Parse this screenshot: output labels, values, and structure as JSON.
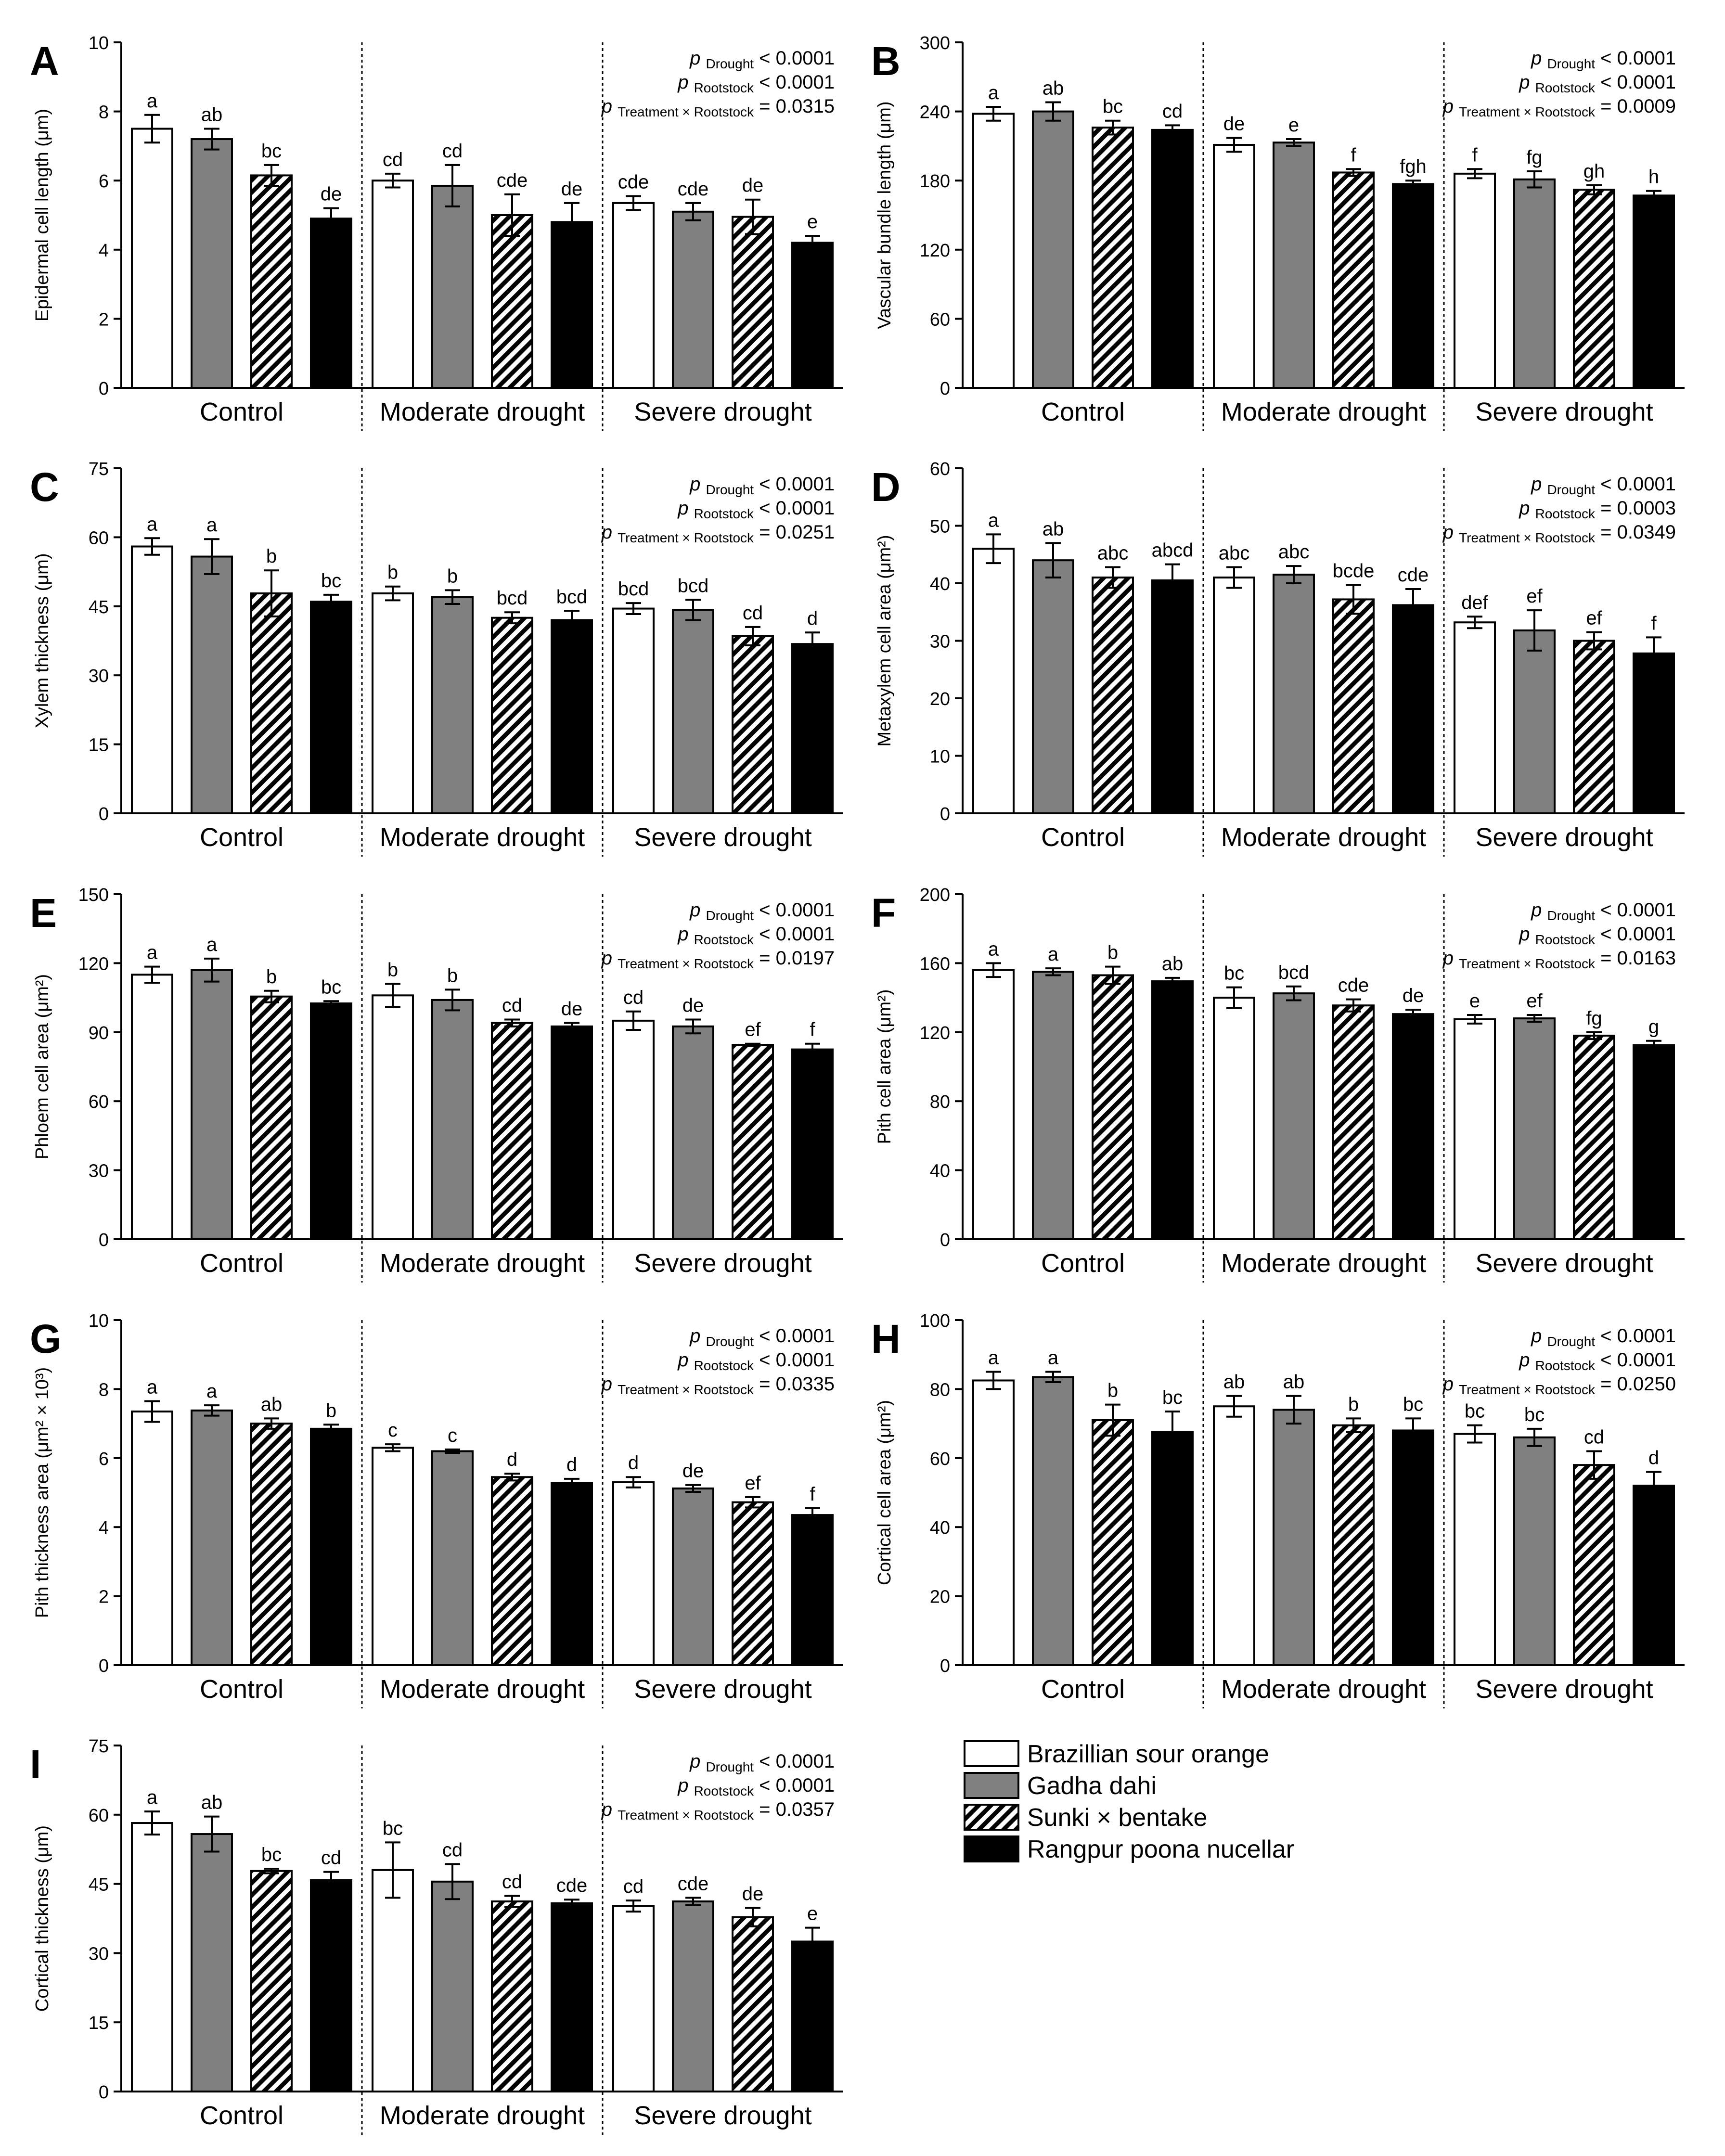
{
  "legend": [
    {
      "name": "Brazillian sour orange",
      "fill": "white"
    },
    {
      "name": "Gadha dahi",
      "fill": "gray"
    },
    {
      "name": "Sunki × bentake",
      "fill": "hatch"
    },
    {
      "name": "Rangpur poona nucellar",
      "fill": "black"
    }
  ],
  "colors": {
    "gray": "#808080",
    "black": "#000000",
    "white": "#ffffff",
    "stroke": "#000000"
  },
  "chart_data": [
    {
      "type": "bar",
      "panel": "A",
      "ylabel": "Epidermal cell length (μm)",
      "ylim": [
        0,
        10
      ],
      "yticks": [
        0,
        2,
        4,
        6,
        8,
        10
      ],
      "groups": [
        "Control",
        "Moderate drought",
        "Severe drought"
      ],
      "series": [
        {
          "name": "Brazillian sour orange",
          "values": [
            7.5,
            6.0,
            5.35
          ],
          "errors": [
            0.4,
            0.2,
            0.2
          ],
          "labels": [
            "a",
            "cd",
            "cde"
          ]
        },
        {
          "name": "Gadha dahi",
          "values": [
            7.2,
            5.85,
            5.1
          ],
          "errors": [
            0.3,
            0.6,
            0.25
          ],
          "labels": [
            "ab",
            "cd",
            "cde"
          ]
        },
        {
          "name": "Sunki × bentake",
          "values": [
            6.15,
            5.0,
            4.95
          ],
          "errors": [
            0.3,
            0.6,
            0.5
          ],
          "labels": [
            "bc",
            "cde",
            "de"
          ]
        },
        {
          "name": "Rangpur poona nucellar",
          "values": [
            4.9,
            4.8,
            4.2
          ],
          "errors": [
            0.3,
            0.55,
            0.2
          ],
          "labels": [
            "de",
            "de",
            "e"
          ]
        }
      ],
      "stats": [
        {
          "p": "p",
          "sub": "Drought",
          "val": "< 0.0001"
        },
        {
          "p": "p",
          "sub": "Rootstock",
          "val": "< 0.0001"
        },
        {
          "p": "p",
          "sub": "Treatment × Rootstock",
          "val": "= 0.0315"
        }
      ]
    },
    {
      "type": "bar",
      "panel": "B",
      "ylabel": "Vascular bundle length (μm)",
      "ylim": [
        0,
        300
      ],
      "yticks": [
        0,
        60,
        120,
        180,
        240,
        300
      ],
      "groups": [
        "Control",
        "Moderate drought",
        "Severe drought"
      ],
      "series": [
        {
          "name": "Brazillian sour orange",
          "values": [
            238,
            211,
            186
          ],
          "errors": [
            6,
            6,
            4
          ],
          "labels": [
            "a",
            "de",
            "f"
          ]
        },
        {
          "name": "Gadha dahi",
          "values": [
            240,
            213,
            181
          ],
          "errors": [
            8,
            3,
            7
          ],
          "labels": [
            "ab",
            "e",
            "fg"
          ]
        },
        {
          "name": "Sunki × bentake",
          "values": [
            226,
            187,
            172
          ],
          "errors": [
            6,
            3,
            4
          ],
          "labels": [
            "bc",
            "f",
            "gh"
          ]
        },
        {
          "name": "Rangpur poona nucellar",
          "values": [
            224,
            177,
            167
          ],
          "errors": [
            4,
            3,
            4
          ],
          "labels": [
            "cd",
            "fgh",
            "h"
          ]
        }
      ],
      "stats": [
        {
          "p": "p",
          "sub": "Drought",
          "val": "< 0.0001"
        },
        {
          "p": "p",
          "sub": "Rootstock",
          "val": "< 0.0001"
        },
        {
          "p": "p",
          "sub": "Treatment × Rootstock",
          "val": "= 0.0009"
        }
      ]
    },
    {
      "type": "bar",
      "panel": "C",
      "ylabel": "Xylem thickness (μm)",
      "ylim": [
        0,
        75
      ],
      "yticks": [
        0,
        15,
        30,
        45,
        60,
        75
      ],
      "groups": [
        "Control",
        "Moderate drought",
        "Severe drought"
      ],
      "series": [
        {
          "name": "Brazillian sour orange",
          "values": [
            58,
            47.8,
            44.5
          ],
          "errors": [
            1.8,
            1.5,
            1.2
          ],
          "labels": [
            "a",
            "b",
            "bcd"
          ]
        },
        {
          "name": "Gadha dahi",
          "values": [
            55.8,
            47,
            44.2
          ],
          "errors": [
            3.8,
            1.5,
            2.2
          ],
          "labels": [
            "a",
            "b",
            "bcd"
          ]
        },
        {
          "name": "Sunki × bentake",
          "values": [
            47.8,
            42.5,
            38.5
          ],
          "errors": [
            5,
            1.2,
            2
          ],
          "labels": [
            "b",
            "bcd",
            "cd"
          ]
        },
        {
          "name": "Rangpur poona nucellar",
          "values": [
            46,
            42,
            36.8
          ],
          "errors": [
            1.5,
            2,
            2.5
          ],
          "labels": [
            "bc",
            "bcd",
            "d"
          ]
        }
      ],
      "stats": [
        {
          "p": "p",
          "sub": "Drought",
          "val": "< 0.0001"
        },
        {
          "p": "p",
          "sub": "Rootstock",
          "val": "< 0.0001"
        },
        {
          "p": "p",
          "sub": "Treatment × Rootstock",
          "val": "= 0.0251"
        }
      ]
    },
    {
      "type": "bar",
      "panel": "D",
      "ylabel": "Metaxylem cell area (μm²)",
      "ylim": [
        0,
        60
      ],
      "yticks": [
        0,
        10,
        20,
        30,
        40,
        50,
        60
      ],
      "groups": [
        "Control",
        "Moderate drought",
        "Severe drought"
      ],
      "series": [
        {
          "name": "Brazillian sour orange",
          "values": [
            46,
            41,
            33.2
          ],
          "errors": [
            2.5,
            1.8,
            1
          ],
          "labels": [
            "a",
            "abc",
            "def"
          ]
        },
        {
          "name": "Gadha dahi",
          "values": [
            44,
            41.5,
            31.8
          ],
          "errors": [
            3,
            1.5,
            3.5
          ],
          "labels": [
            "ab",
            "abc",
            "ef"
          ]
        },
        {
          "name": "Sunki × bentake",
          "values": [
            41,
            37.2,
            30
          ],
          "errors": [
            1.8,
            2.5,
            1.5
          ],
          "labels": [
            "abc",
            "bcde",
            "ef"
          ]
        },
        {
          "name": "Rangpur poona nucellar",
          "values": [
            40.5,
            36.2,
            27.8
          ],
          "errors": [
            2.8,
            2.8,
            2.8
          ],
          "labels": [
            "abcd",
            "cde",
            "f"
          ]
        }
      ],
      "stats": [
        {
          "p": "p",
          "sub": "Drought",
          "val": "< 0.0001"
        },
        {
          "p": "p",
          "sub": "Rootstock",
          "val": "= 0.0003"
        },
        {
          "p": "p",
          "sub": "Treatment × Rootstock",
          "val": "= 0.0349"
        }
      ]
    },
    {
      "type": "bar",
      "panel": "E",
      "ylabel": "Phloem cell area (μm²)",
      "ylim": [
        0,
        150
      ],
      "yticks": [
        0,
        30,
        60,
        90,
        120,
        150
      ],
      "groups": [
        "Control",
        "Moderate drought",
        "Severe drought"
      ],
      "series": [
        {
          "name": "Brazillian sour orange",
          "values": [
            115,
            106,
            95
          ],
          "errors": [
            3.5,
            5,
            4
          ],
          "labels": [
            "a",
            "b",
            "cd"
          ]
        },
        {
          "name": "Gadha dahi",
          "values": [
            117,
            104,
            92.5
          ],
          "errors": [
            5,
            4.5,
            3
          ],
          "labels": [
            "a",
            "b",
            "de"
          ]
        },
        {
          "name": "Sunki × bentake",
          "values": [
            105.5,
            94,
            84.5
          ],
          "errors": [
            2.5,
            1.5,
            0.5
          ],
          "labels": [
            "b",
            "cd",
            "ef"
          ]
        },
        {
          "name": "Rangpur poona nucellar",
          "values": [
            102.5,
            92.5,
            82.5
          ],
          "errors": [
            1,
            1.5,
            2.5
          ],
          "labels": [
            "bc",
            "de",
            "f"
          ]
        }
      ],
      "stats": [
        {
          "p": "p",
          "sub": "Drought",
          "val": "< 0.0001"
        },
        {
          "p": "p",
          "sub": "Rootstock",
          "val": "< 0.0001"
        },
        {
          "p": "p",
          "sub": "Treatment × Rootstock",
          "val": "= 0.0197"
        }
      ]
    },
    {
      "type": "bar",
      "panel": "F",
      "ylabel": "Pith cell area (μm²)",
      "ylim": [
        0,
        200
      ],
      "yticks": [
        0,
        40,
        80,
        120,
        160,
        200
      ],
      "groups": [
        "Control",
        "Moderate drought",
        "Severe drought"
      ],
      "series": [
        {
          "name": "Brazillian sour orange",
          "values": [
            156,
            140,
            127.5
          ],
          "errors": [
            4,
            6,
            2.5
          ],
          "labels": [
            "a",
            "bc",
            "e"
          ]
        },
        {
          "name": "Gadha dahi",
          "values": [
            155,
            142.5,
            128
          ],
          "errors": [
            2,
            4,
            2
          ],
          "labels": [
            "a",
            "bcd",
            "ef"
          ]
        },
        {
          "name": "Sunki × bentake",
          "values": [
            153,
            135.5,
            118
          ],
          "errors": [
            5,
            3.5,
            2
          ],
          "labels": [
            "b",
            "cde",
            "fg"
          ]
        },
        {
          "name": "Rangpur poona nucellar",
          "values": [
            149.5,
            130.5,
            112.5
          ],
          "errors": [
            2,
            2.5,
            2.5
          ],
          "labels": [
            "ab",
            "de",
            "g"
          ]
        }
      ],
      "stats": [
        {
          "p": "p",
          "sub": "Drought",
          "val": "< 0.0001"
        },
        {
          "p": "p",
          "sub": "Rootstock",
          "val": "< 0.0001"
        },
        {
          "p": "p",
          "sub": "Treatment × Rootstock",
          "val": "= 0.0163"
        }
      ]
    },
    {
      "type": "bar",
      "panel": "G",
      "ylabel": "Pith thickness area (μm² × 10³)",
      "ylim": [
        0,
        10
      ],
      "yticks": [
        0,
        2,
        4,
        6,
        8,
        10
      ],
      "groups": [
        "Control",
        "Moderate drought",
        "Severe drought"
      ],
      "series": [
        {
          "name": "Brazillian sour orange",
          "values": [
            7.35,
            6.3,
            5.3
          ],
          "errors": [
            0.3,
            0.1,
            0.15
          ],
          "labels": [
            "a",
            "c",
            "d"
          ]
        },
        {
          "name": "Gadha dahi",
          "values": [
            7.38,
            6.2,
            5.12
          ],
          "errors": [
            0.15,
            0.05,
            0.1
          ],
          "labels": [
            "a",
            "c",
            "de"
          ]
        },
        {
          "name": "Sunki × bentake",
          "values": [
            7.0,
            5.45,
            4.72
          ],
          "errors": [
            0.15,
            0.1,
            0.15
          ],
          "labels": [
            "ab",
            "d",
            "ef"
          ]
        },
        {
          "name": "Rangpur poona nucellar",
          "values": [
            6.85,
            5.28,
            4.35
          ],
          "errors": [
            0.12,
            0.12,
            0.2
          ],
          "labels": [
            "b",
            "d",
            "f"
          ]
        }
      ],
      "stats": [
        {
          "p": "p",
          "sub": "Drought",
          "val": "< 0.0001"
        },
        {
          "p": "p",
          "sub": "Rootstock",
          "val": "< 0.0001"
        },
        {
          "p": "p",
          "sub": "Treatment × Rootstock",
          "val": "= 0.0335"
        }
      ]
    },
    {
      "type": "bar",
      "panel": "H",
      "ylabel": "Cortical cell area (μm²)",
      "ylim": [
        0,
        100
      ],
      "yticks": [
        0,
        20,
        40,
        60,
        80,
        100
      ],
      "groups": [
        "Control",
        "Moderate drought",
        "Severe drought"
      ],
      "series": [
        {
          "name": "Brazillian sour orange",
          "values": [
            82.5,
            75,
            67
          ],
          "errors": [
            2.5,
            3,
            2.5
          ],
          "labels": [
            "a",
            "ab",
            "bc"
          ]
        },
        {
          "name": "Gadha dahi",
          "values": [
            83.5,
            74,
            66
          ],
          "errors": [
            1.5,
            4,
            2.5
          ],
          "labels": [
            "a",
            "ab",
            "bc"
          ]
        },
        {
          "name": "Sunki × bentake",
          "values": [
            71,
            69.5,
            58
          ],
          "errors": [
            4.5,
            2,
            4
          ],
          "labels": [
            "b",
            "b",
            "cd"
          ]
        },
        {
          "name": "Rangpur poona nucellar",
          "values": [
            67.5,
            68,
            52
          ],
          "errors": [
            6,
            3.5,
            4
          ],
          "labels": [
            "bc",
            "bc",
            "d"
          ]
        }
      ],
      "stats": [
        {
          "p": "p",
          "sub": "Drought",
          "val": "< 0.0001"
        },
        {
          "p": "p",
          "sub": "Rootstock",
          "val": "< 0.0001"
        },
        {
          "p": "p",
          "sub": "Treatment × Rootstock",
          "val": "= 0.0250"
        }
      ]
    },
    {
      "type": "bar",
      "panel": "I",
      "ylabel": "Cortical thickness (μm)",
      "ylim": [
        0,
        75
      ],
      "yticks": [
        0,
        15,
        30,
        45,
        60,
        75
      ],
      "groups": [
        "Control",
        "Moderate drought",
        "Severe drought"
      ],
      "series": [
        {
          "name": "Brazillian sour orange",
          "values": [
            58.2,
            48,
            40.2
          ],
          "errors": [
            2.5,
            6,
            1.2
          ],
          "labels": [
            "a",
            "bc",
            "cd"
          ]
        },
        {
          "name": "Gadha dahi",
          "values": [
            55.8,
            45.5,
            41.2
          ],
          "errors": [
            3.8,
            3.8,
            0.8
          ],
          "labels": [
            "ab",
            "cd",
            "cde"
          ]
        },
        {
          "name": "Sunki × bentake",
          "values": [
            47.8,
            41.2,
            37.8
          ],
          "errors": [
            0.5,
            1.2,
            2
          ],
          "labels": [
            "bc",
            "cd",
            "de"
          ]
        },
        {
          "name": "Rangpur poona nucellar",
          "values": [
            45.8,
            40.8,
            32.5
          ],
          "errors": [
            1.8,
            0.8,
            3
          ],
          "labels": [
            "cd",
            "cde",
            "e"
          ]
        }
      ],
      "stats": [
        {
          "p": "p",
          "sub": "Drought",
          "val": "< 0.0001"
        },
        {
          "p": "p",
          "sub": "Rootstock",
          "val": "< 0.0001"
        },
        {
          "p": "p",
          "sub": "Treatment × Rootstock",
          "val": "= 0.0357"
        }
      ]
    }
  ]
}
